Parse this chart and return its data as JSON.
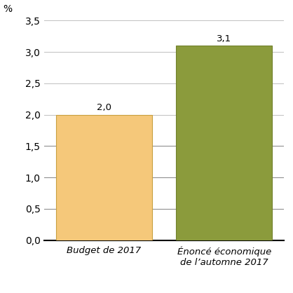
{
  "categories": [
    "Budget de 2017",
    "Énoncé économique\nde l’automne 2017"
  ],
  "values": [
    2.0,
    3.1
  ],
  "bar_colors": [
    "#F5C87A",
    "#8B9B3C"
  ],
  "bar_edge_colors": [
    "#C8A040",
    "#70802A"
  ],
  "ylabel": "%",
  "ylim": [
    0,
    3.5
  ],
  "yticks": [
    0.0,
    0.5,
    1.0,
    1.5,
    2.0,
    2.5,
    3.0,
    3.5
  ],
  "ytick_labels": [
    "0,0",
    "0,5",
    "1,0",
    "1,5",
    "2,0",
    "2,5",
    "3,0",
    "3,5"
  ],
  "value_labels": [
    "2,0",
    "3,1"
  ],
  "background_color": "#FFFFFF",
  "grid_color_light": "#C0C0C0",
  "grid_color_dark": "#909090",
  "bar_width": 0.8,
  "label_fontsize": 9.5,
  "tick_fontsize": 10,
  "ylabel_fontsize": 10,
  "xlim": [
    -0.5,
    1.5
  ]
}
